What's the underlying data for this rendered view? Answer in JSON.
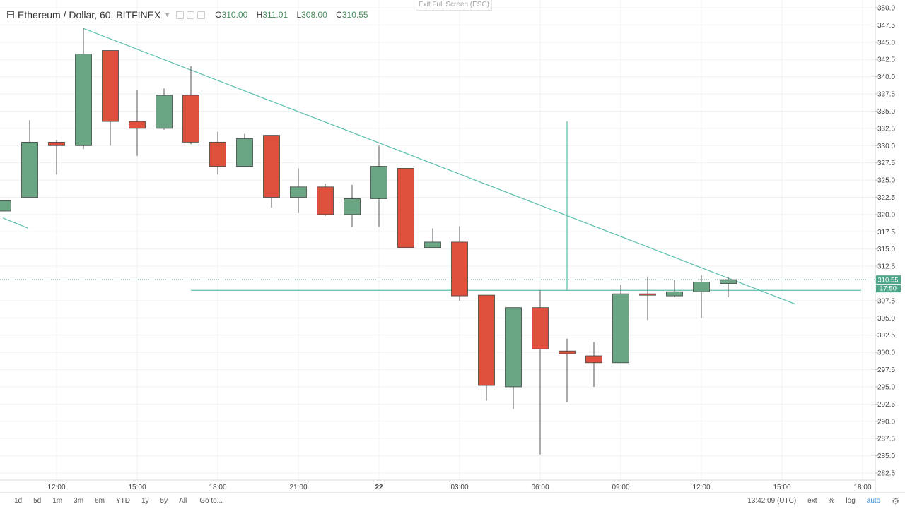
{
  "header": {
    "symbol": "Ethereum / Dollar, 60, BITFINEX",
    "open_label": "O",
    "open": "310.00",
    "high_label": "H",
    "high": "311.01",
    "low_label": "L",
    "low": "308.00",
    "close_label": "C",
    "close": "310.55"
  },
  "exit_fullscreen": "Exit Full Screen (ESC)",
  "price_axis": {
    "ticks": [
      350.0,
      347.5,
      345.0,
      342.5,
      340.0,
      337.5,
      335.0,
      332.5,
      330.0,
      327.5,
      325.0,
      322.5,
      320.0,
      317.5,
      315.0,
      312.5,
      307.5,
      305.0,
      302.5,
      300.0,
      297.5,
      295.0,
      292.5,
      290.0,
      287.5,
      285.0,
      282.5
    ],
    "last_price_label": "310.55",
    "countdown_label": "17:50"
  },
  "time_axis": [
    "12:00",
    "15:00",
    "18:00",
    "21:00",
    "22",
    "03:00",
    "06:00",
    "09:00",
    "12:00",
    "15:00",
    "18:00"
  ],
  "bottom_bar": {
    "ranges": [
      "1d",
      "5d",
      "1m",
      "3m",
      "6m",
      "YTD",
      "1y",
      "5y",
      "All"
    ],
    "goto": "Go to...",
    "clock": "13:42:09 (UTC)",
    "ext": "ext",
    "percent": "%",
    "log": "log",
    "auto": "auto"
  },
  "colors": {
    "up": "#6aa584",
    "down": "#de4f3c",
    "trendline": "#5bbfae",
    "grid": "#eef0f3",
    "last_price_bg": "#4fa58a"
  },
  "chart_data": {
    "type": "candlestick",
    "interval_minutes": 60,
    "ylim": [
      281.5,
      351
    ],
    "x_unit": "hours from first label 12:00",
    "candles": [
      {
        "t": -2,
        "o": 320.5,
        "h": 322.0,
        "l": 320.5,
        "c": 322.0
      },
      {
        "t": -1,
        "o": 322.5,
        "h": 333.7,
        "l": 322.5,
        "c": 330.5
      },
      {
        "t": 0,
        "o": 330.5,
        "h": 330.8,
        "l": 325.8,
        "c": 330.0
      },
      {
        "t": 1,
        "o": 330.0,
        "h": 347.0,
        "l": 329.5,
        "c": 343.3
      },
      {
        "t": 2,
        "o": 343.8,
        "h": 343.8,
        "l": 330.0,
        "c": 333.5
      },
      {
        "t": 3,
        "o": 333.5,
        "h": 338.0,
        "l": 328.5,
        "c": 332.5
      },
      {
        "t": 4,
        "o": 332.5,
        "h": 338.3,
        "l": 332.3,
        "c": 337.3
      },
      {
        "t": 5,
        "o": 337.3,
        "h": 341.5,
        "l": 330.2,
        "c": 330.5
      },
      {
        "t": 6,
        "o": 330.5,
        "h": 332.0,
        "l": 325.8,
        "c": 327.0
      },
      {
        "t": 7,
        "o": 327.0,
        "h": 331.7,
        "l": 327.0,
        "c": 331.0
      },
      {
        "t": 8,
        "o": 331.5,
        "h": 331.5,
        "l": 321.0,
        "c": 322.5
      },
      {
        "t": 9,
        "o": 322.5,
        "h": 326.7,
        "l": 320.2,
        "c": 324.0
      },
      {
        "t": 10,
        "o": 324.0,
        "h": 324.5,
        "l": 319.8,
        "c": 320.0
      },
      {
        "t": 11,
        "o": 320.0,
        "h": 324.3,
        "l": 318.2,
        "c": 322.3
      },
      {
        "t": 12,
        "o": 322.3,
        "h": 330.0,
        "l": 318.2,
        "c": 327.0
      },
      {
        "t": 13,
        "o": 326.7,
        "h": 326.7,
        "l": 315.2,
        "c": 315.2
      },
      {
        "t": 14,
        "o": 315.2,
        "h": 318.0,
        "l": 315.2,
        "c": 316.0
      },
      {
        "t": 15,
        "o": 316.0,
        "h": 318.3,
        "l": 307.5,
        "c": 308.2
      },
      {
        "t": 16,
        "o": 308.3,
        "h": 308.3,
        "l": 293.0,
        "c": 295.2
      },
      {
        "t": 17,
        "o": 295.0,
        "h": 306.5,
        "l": 291.8,
        "c": 306.5
      },
      {
        "t": 18,
        "o": 306.5,
        "h": 309.0,
        "l": 285.2,
        "c": 300.5
      },
      {
        "t": 19,
        "o": 300.2,
        "h": 302.0,
        "l": 292.8,
        "c": 299.8
      },
      {
        "t": 20,
        "o": 299.5,
        "h": 301.5,
        "l": 295.0,
        "c": 298.5
      },
      {
        "t": 21,
        "o": 298.5,
        "h": 309.8,
        "l": 298.5,
        "c": 308.5
      },
      {
        "t": 22,
        "o": 308.5,
        "h": 311.0,
        "l": 304.7,
        "c": 308.3
      },
      {
        "t": 23,
        "o": 308.2,
        "h": 310.5,
        "l": 308.0,
        "c": 308.8
      },
      {
        "t": 24,
        "o": 308.8,
        "h": 311.2,
        "l": 305.0,
        "c": 310.2
      },
      {
        "t": 25,
        "o": 310.0,
        "h": 311.0,
        "l": 308.0,
        "c": 310.55
      }
    ],
    "drawings": {
      "trendline_1": {
        "from": {
          "t": 1,
          "p": 347.0
        },
        "to": {
          "t": 27.5,
          "p": 307.0
        }
      },
      "trendline_2": {
        "from": {
          "t": -2,
          "p": 319.5
        },
        "to": {
          "t": -1.05,
          "p": 318.0
        }
      },
      "horizontal_line": {
        "p": 309.0,
        "from_t": 5,
        "to_t": 30
      },
      "vertical_line": {
        "t": 19,
        "from_p": 333.5,
        "to_p": 309.0
      }
    }
  }
}
